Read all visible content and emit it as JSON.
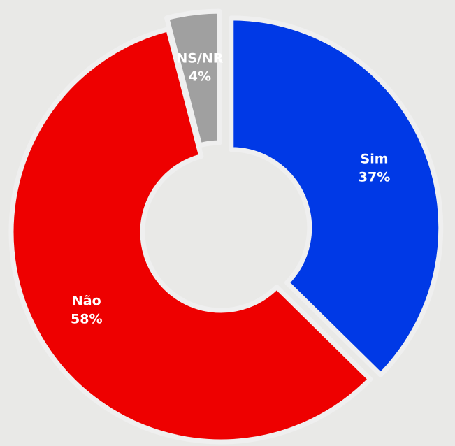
{
  "chart_data": {
    "type": "donut",
    "categories": [
      "Sim",
      "Não",
      "NS/NR"
    ],
    "values": [
      37,
      58,
      4
    ],
    "value_labels": [
      "37%",
      "58%",
      "4%"
    ],
    "colors": [
      "#0039e6",
      "#ee0000",
      "#a0a0a0"
    ],
    "exploded": [
      "Sim",
      "NS/NR"
    ]
  }
}
